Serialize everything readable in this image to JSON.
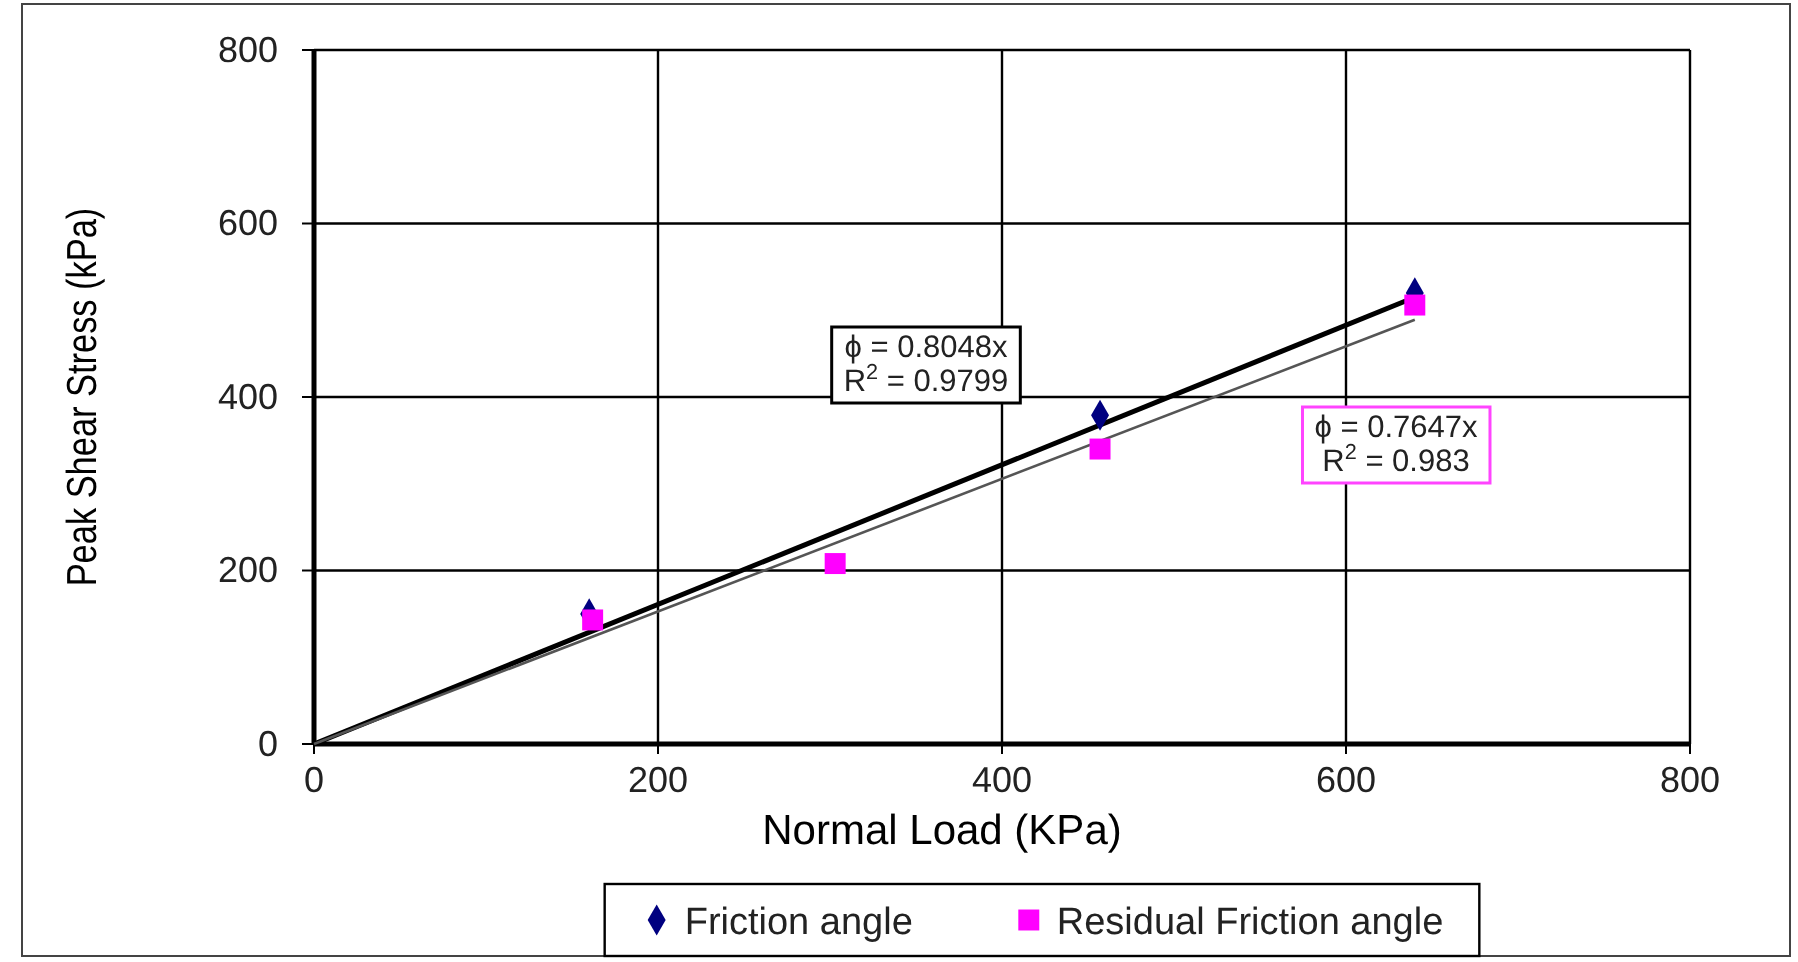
{
  "chart_data": {
    "type": "scatter",
    "xlabel": "Normal Load (KPa)",
    "ylabel": "Peak Shear Stress (kPa)",
    "xlim": [
      0,
      800
    ],
    "xticks": [
      0,
      200,
      400,
      600,
      800
    ],
    "ylim": [
      0,
      800
    ],
    "yticks": [
      0,
      200,
      400,
      600,
      800
    ],
    "grid": true,
    "legend": "bottom",
    "series": [
      {
        "name": "Friction angle",
        "color": "#000080",
        "marker": "diamond",
        "x": [
          160,
          457,
          640
        ],
        "values": [
          150,
          379,
          520
        ]
      },
      {
        "name": "Residual Friction angle",
        "color": "#ff00ff",
        "marker": "square",
        "x": [
          162,
          303,
          457,
          640
        ],
        "values": [
          143,
          208,
          340,
          506
        ]
      },
      {
        "type": "line",
        "color": "#000000",
        "marker": "none",
        "x": [
          0,
          640
        ],
        "values": [
          0,
          515
        ]
      },
      {
        "type": "line",
        "color": "#555555",
        "marker": "none",
        "x": [
          0,
          640
        ],
        "values": [
          0,
          489
        ]
      }
    ],
    "annotations": [
      "ϕ = 0.8048x\nR$^{2}$ = 0.9799",
      "ϕ = 0.7647x\nR$^{2}$ = 0.983"
    ]
  }
}
